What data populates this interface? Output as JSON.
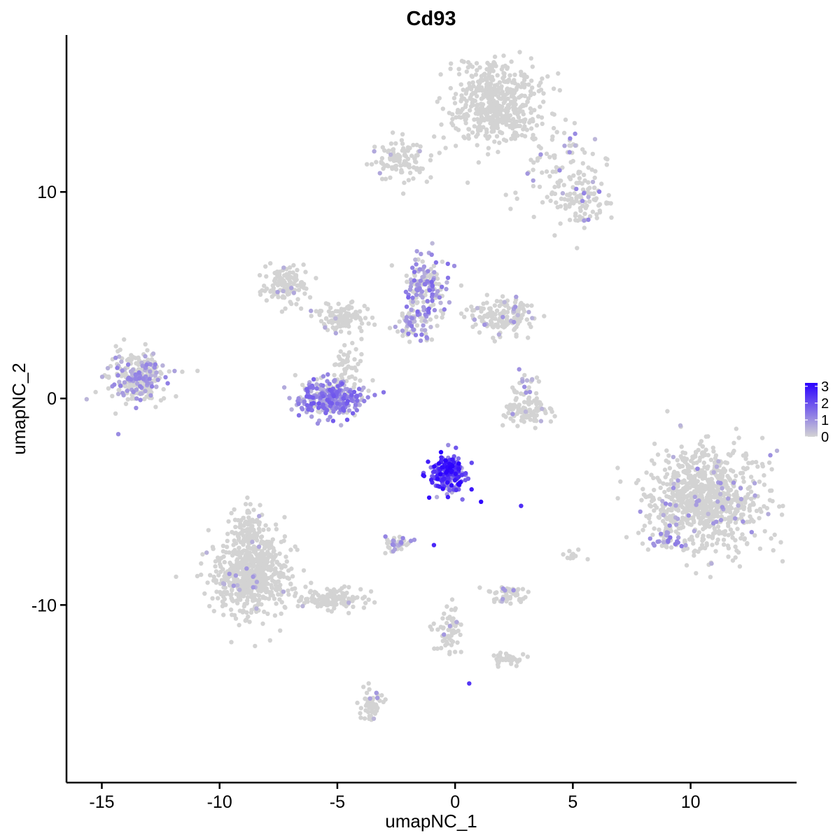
{
  "chart_data": {
    "type": "scatter",
    "title": "Cd93",
    "xlabel": "umapNC_1",
    "ylabel": "umapNC_2",
    "xlim": [
      -16.5,
      14.5
    ],
    "ylim": [
      -18.6,
      17.6
    ],
    "x_ticks": [
      -15,
      -10,
      -5,
      0,
      5,
      10
    ],
    "x_tick_labels": [
      "-15",
      "-10",
      "-5",
      "0",
      "5",
      "10"
    ],
    "y_ticks": [
      -10,
      0,
      10
    ],
    "y_tick_labels": [
      "-10",
      "0",
      "10"
    ],
    "grid": false,
    "legend": {
      "placement": "right",
      "type": "colorbar",
      "range": [
        0,
        3.2
      ],
      "ticks": [
        0,
        1,
        2,
        3
      ],
      "tick_labels": [
        "0",
        "1",
        "2",
        "3"
      ],
      "low_color": "#D3D3D3",
      "high_color": "#2A00FF"
    },
    "colors": {
      "zero": "#D3D3D3",
      "low": "#D3D3D3",
      "high": "#2A00FF"
    },
    "clusters": [
      {
        "name": "top-right-main",
        "x": 1.7,
        "y": 14.3,
        "sx": 1.0,
        "sy": 1.0,
        "n": 500,
        "expr_frac": 0.0,
        "expr_max": 0.0
      },
      {
        "name": "top-right-arm",
        "x": 4.6,
        "y": 10.8,
        "sx": 0.9,
        "sy": 1.1,
        "n": 120,
        "expr_frac": 0.08,
        "expr_max": 1.2
      },
      {
        "name": "top-right-tip",
        "x": 5.5,
        "y": 9.4,
        "sx": 0.5,
        "sy": 0.5,
        "n": 60,
        "expr_frac": 0.25,
        "expr_max": 1.3
      },
      {
        "name": "top-center-arm",
        "x": -2.3,
        "y": 11.6,
        "sx": 0.6,
        "sy": 0.45,
        "n": 110,
        "expr_frac": 0.05,
        "expr_max": 1.0
      },
      {
        "name": "upper-left-fan",
        "x": -7.2,
        "y": 5.5,
        "sx": 0.5,
        "sy": 0.45,
        "n": 120,
        "expr_frac": 0.03,
        "expr_max": 0.8
      },
      {
        "name": "upper-left-stem",
        "x": -4.8,
        "y": 3.9,
        "sx": 0.6,
        "sy": 0.35,
        "n": 110,
        "expr_frac": 0.03,
        "expr_max": 0.8
      },
      {
        "name": "center-upper",
        "x": -1.2,
        "y": 5.4,
        "sx": 0.5,
        "sy": 0.7,
        "n": 160,
        "expr_frac": 0.55,
        "expr_max": 1.7
      },
      {
        "name": "center-upper-right",
        "x": 2.0,
        "y": 4.0,
        "sx": 0.7,
        "sy": 0.45,
        "n": 160,
        "expr_frac": 0.08,
        "expr_max": 1.0
      },
      {
        "name": "center-upper-lower",
        "x": -1.8,
        "y": 3.6,
        "sx": 0.45,
        "sy": 0.45,
        "n": 70,
        "expr_frac": 0.45,
        "expr_max": 1.5
      },
      {
        "name": "left-cluster",
        "x": -13.5,
        "y": 1.0,
        "sx": 0.6,
        "sy": 0.6,
        "n": 300,
        "expr_frac": 0.3,
        "expr_max": 1.3
      },
      {
        "name": "center-left-bowl",
        "x": -5.3,
        "y": 0.0,
        "sx": 0.7,
        "sy": 0.45,
        "n": 300,
        "expr_frac": 0.85,
        "expr_max": 1.9
      },
      {
        "name": "center-left-bowl-stem",
        "x": -4.7,
        "y": 1.6,
        "sx": 0.45,
        "sy": 0.6,
        "n": 50,
        "expr_frac": 0.02,
        "expr_max": 0.8
      },
      {
        "name": "center-right-small",
        "x": 3.0,
        "y": -0.6,
        "sx": 0.5,
        "sy": 0.3,
        "n": 100,
        "expr_frac": 0.05,
        "expr_max": 1.0
      },
      {
        "name": "center-right-small-arm",
        "x": 3.0,
        "y": 0.6,
        "sx": 0.25,
        "sy": 0.35,
        "n": 25,
        "expr_frac": 0.3,
        "expr_max": 1.2
      },
      {
        "name": "right-big",
        "x": 10.6,
        "y": -4.9,
        "sx": 1.2,
        "sy": 1.2,
        "n": 900,
        "expr_frac": 0.05,
        "expr_max": 1.2
      },
      {
        "name": "right-big-lower-edge",
        "x": 9.0,
        "y": -6.8,
        "sx": 0.45,
        "sy": 0.3,
        "n": 40,
        "expr_frac": 0.45,
        "expr_max": 1.5
      },
      {
        "name": "center-high",
        "x": -0.3,
        "y": -3.6,
        "sx": 0.35,
        "sy": 0.45,
        "n": 220,
        "expr_frac": 1.0,
        "expr_max": 3.2
      },
      {
        "name": "bottom-left-big",
        "x": -8.6,
        "y": -8.6,
        "sx": 0.85,
        "sy": 0.9,
        "n": 600,
        "expr_frac": 0.02,
        "expr_max": 1.0
      },
      {
        "name": "bottom-left-tail",
        "x": -5.2,
        "y": -9.7,
        "sx": 0.9,
        "sy": 0.28,
        "n": 120,
        "expr_frac": 0.01,
        "expr_max": 0.8
      },
      {
        "name": "bottom-left-top",
        "x": -8.8,
        "y": -6.3,
        "sx": 0.35,
        "sy": 0.5,
        "n": 100,
        "expr_frac": 0.02,
        "expr_max": 0.8
      },
      {
        "name": "bottom-center-small",
        "x": -2.5,
        "y": -7.0,
        "sx": 0.3,
        "sy": 0.18,
        "n": 40,
        "expr_frac": 0.2,
        "expr_max": 1.2
      },
      {
        "name": "bottom-center-right",
        "x": 2.3,
        "y": -9.5,
        "sx": 0.4,
        "sy": 0.18,
        "n": 50,
        "expr_frac": 0.15,
        "expr_max": 1.1
      },
      {
        "name": "bottom-center-stem",
        "x": -0.3,
        "y": -11.2,
        "sx": 0.25,
        "sy": 0.6,
        "n": 60,
        "expr_frac": 0.05,
        "expr_max": 1.0
      },
      {
        "name": "bottom-center-tail",
        "x": 2.2,
        "y": -12.6,
        "sx": 0.35,
        "sy": 0.18,
        "n": 35,
        "expr_frac": 0.02,
        "expr_max": 0.8
      },
      {
        "name": "bottom-small",
        "x": -3.6,
        "y": -14.8,
        "sx": 0.25,
        "sy": 0.4,
        "n": 60,
        "expr_frac": 0.05,
        "expr_max": 1.0
      },
      {
        "name": "right-small",
        "x": 5.0,
        "y": -7.6,
        "sx": 0.2,
        "sy": 0.15,
        "n": 12,
        "expr_frac": 0.0,
        "expr_max": 0.0
      }
    ],
    "highlights": [
      {
        "x": -0.6,
        "y": -2.6,
        "v": 3.2
      },
      {
        "x": 1.1,
        "y": -5.0,
        "v": 3.1
      },
      {
        "x": -1.1,
        "y": -4.8,
        "v": 3.0
      },
      {
        "x": -0.4,
        "y": -3.3,
        "v": 2.9
      },
      {
        "x": 0.7,
        "y": -4.4,
        "v": 2.8
      },
      {
        "x": -0.9,
        "y": -7.1,
        "v": 2.6
      },
      {
        "x": 2.8,
        "y": -5.2,
        "v": 2.5
      },
      {
        "x": 0.6,
        "y": -13.8,
        "v": 2.4
      }
    ],
    "seed": 93
  }
}
